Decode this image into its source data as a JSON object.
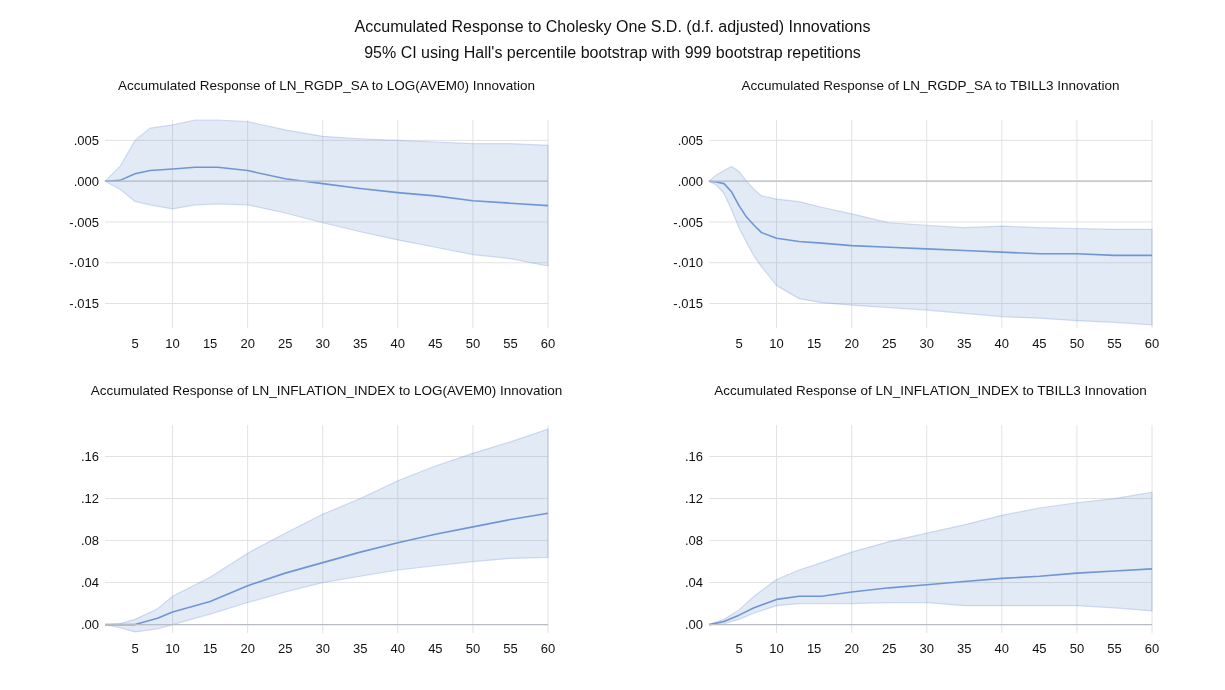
{
  "chart_data": [
    {
      "type": "other",
      "title": "Accumulated Response to Cholesky One S.D. (d.f. adjusted) Innovations",
      "subtitle": "95% CI using Hall's percentile bootstrap with 999 bootstrap repetitions"
    },
    {
      "type": "line",
      "title": "Accumulated Response of LN_RGDP_SA to LOG(AVEM0) Innovation",
      "x": [
        1,
        3,
        5,
        7,
        10,
        13,
        16,
        20,
        25,
        30,
        35,
        40,
        45,
        50,
        55,
        60
      ],
      "xlim": [
        1,
        60
      ],
      "xticks": [
        5,
        10,
        15,
        20,
        25,
        30,
        35,
        40,
        45,
        50,
        55,
        60
      ],
      "ylim": [
        -0.018,
        0.0075
      ],
      "yticks": [
        {
          "value": 0.005,
          "label": ".005"
        },
        {
          "value": 0,
          "label": ".000"
        },
        {
          "value": -0.005,
          "label": "-.005"
        },
        {
          "value": -0.01,
          "label": "-.010"
        },
        {
          "value": -0.015,
          "label": "-.015"
        }
      ],
      "grid": true,
      "series": [
        {
          "color": "#6f96d4",
          "values": [
            0,
            0.0001,
            0.0009,
            0.0013,
            0.0015,
            0.0017,
            0.0017,
            0.0013,
            0.0003,
            -0.0003,
            -0.0009,
            -0.0014,
            -0.0018,
            -0.0024,
            -0.0027,
            -0.003
          ],
          "upper": [
            0,
            0.0018,
            0.005,
            0.0065,
            0.0069,
            0.0075,
            0.0075,
            0.0073,
            0.0063,
            0.0055,
            0.0052,
            0.005,
            0.0048,
            0.0046,
            0.0046,
            0.0044
          ],
          "lower": [
            0,
            -0.001,
            -0.0025,
            -0.0029,
            -0.0034,
            -0.0029,
            -0.0028,
            -0.0029,
            -0.0039,
            -0.0051,
            -0.0062,
            -0.0072,
            -0.0081,
            -0.009,
            -0.0095,
            -0.0104
          ]
        }
      ]
    },
    {
      "type": "line",
      "title": "Accumulated Response of LN_RGDP_SA to TBILL3 Innovation",
      "x": [
        1,
        2,
        3,
        4,
        5,
        6,
        7,
        8,
        10,
        13,
        16,
        20,
        25,
        30,
        35,
        40,
        45,
        50,
        55,
        60
      ],
      "xlim": [
        1,
        60
      ],
      "xticks": [
        5,
        10,
        15,
        20,
        25,
        30,
        35,
        40,
        45,
        50,
        55,
        60
      ],
      "ylim": [
        -0.018,
        0.0075
      ],
      "yticks": [
        {
          "value": 0.005,
          "label": ".005"
        },
        {
          "value": 0,
          "label": ".000"
        },
        {
          "value": -0.005,
          "label": "-.005"
        },
        {
          "value": -0.01,
          "label": "-.010"
        },
        {
          "value": -0.015,
          "label": "-.015"
        }
      ],
      "grid": true,
      "series": [
        {
          "color": "#6f96d4",
          "values": [
            0,
            -0.0001,
            -0.0003,
            -0.0013,
            -0.003,
            -0.0044,
            -0.0054,
            -0.0063,
            -0.007,
            -0.0074,
            -0.0076,
            -0.0079,
            -0.0081,
            -0.0083,
            -0.0085,
            -0.0087,
            -0.0089,
            -0.0089,
            -0.0091,
            -0.0091
          ],
          "upper": [
            0,
            0.0008,
            0.0013,
            0.0018,
            0.0012,
            0,
            -0.001,
            -0.0018,
            -0.0022,
            -0.0025,
            -0.0032,
            -0.004,
            -0.0051,
            -0.0054,
            -0.0057,
            -0.0055,
            -0.0057,
            -0.0058,
            -0.0059,
            -0.0059
          ],
          "lower": [
            0,
            -0.0005,
            -0.0015,
            -0.0035,
            -0.0057,
            -0.0075,
            -0.0092,
            -0.0105,
            -0.0128,
            -0.0144,
            -0.0149,
            -0.0152,
            -0.0155,
            -0.0158,
            -0.0162,
            -0.0166,
            -0.0168,
            -0.0171,
            -0.0173,
            -0.0176
          ]
        }
      ]
    },
    {
      "type": "line",
      "title": "Accumulated Response of LN_INFLATION_INDEX to LOG(AVEM0) Innovation",
      "x": [
        1,
        3,
        5,
        8,
        10,
        15,
        20,
        25,
        30,
        35,
        40,
        45,
        50,
        55,
        60
      ],
      "xlim": [
        1,
        60
      ],
      "xticks": [
        5,
        10,
        15,
        20,
        25,
        30,
        35,
        40,
        45,
        50,
        55,
        60
      ],
      "ylim": [
        -0.008,
        0.19
      ],
      "yticks": [
        {
          "value": 0,
          "label": ".00"
        },
        {
          "value": 0.04,
          "label": ".04"
        },
        {
          "value": 0.08,
          "label": ".08"
        },
        {
          "value": 0.12,
          "label": ".12"
        },
        {
          "value": 0.16,
          "label": ".16"
        }
      ],
      "grid": true,
      "series": [
        {
          "color": "#6f96d4",
          "values": [
            0,
            0,
            0,
            0.006,
            0.012,
            0.022,
            0.037,
            0.049,
            0.059,
            0.069,
            0.078,
            0.086,
            0.093,
            0.1,
            0.106
          ],
          "upper": [
            0,
            0.001,
            0.005,
            0.015,
            0.027,
            0.045,
            0.068,
            0.087,
            0.105,
            0.12,
            0.137,
            0.151,
            0.163,
            0.174,
            0.186
          ],
          "lower": [
            0,
            -0.003,
            -0.007,
            -0.004,
            0,
            0.01,
            0.021,
            0.031,
            0.04,
            0.046,
            0.052,
            0.056,
            0.06,
            0.063,
            0.064
          ]
        }
      ]
    },
    {
      "type": "line",
      "title": "Accumulated Response of LN_INFLATION_INDEX to TBILL3 Innovation",
      "x": [
        1,
        3,
        5,
        7,
        10,
        13,
        16,
        20,
        25,
        30,
        35,
        40,
        45,
        50,
        55,
        60
      ],
      "xlim": [
        1,
        60
      ],
      "xticks": [
        5,
        10,
        15,
        20,
        25,
        30,
        35,
        40,
        45,
        50,
        55,
        60
      ],
      "ylim": [
        -0.008,
        0.19
      ],
      "yticks": [
        {
          "value": 0,
          "label": ".00"
        },
        {
          "value": 0.04,
          "label": ".04"
        },
        {
          "value": 0.08,
          "label": ".08"
        },
        {
          "value": 0.12,
          "label": ".12"
        },
        {
          "value": 0.16,
          "label": ".16"
        }
      ],
      "grid": true,
      "series": [
        {
          "color": "#6f96d4",
          "values": [
            0,
            0.003,
            0.009,
            0.016,
            0.024,
            0.027,
            0.027,
            0.031,
            0.035,
            0.038,
            0.041,
            0.044,
            0.046,
            0.049,
            0.051,
            0.053
          ],
          "upper": [
            0,
            0.005,
            0.014,
            0.027,
            0.043,
            0.052,
            0.059,
            0.069,
            0.079,
            0.087,
            0.095,
            0.104,
            0.111,
            0.116,
            0.12,
            0.126
          ],
          "lower": [
            0,
            0.001,
            0.005,
            0.011,
            0.018,
            0.02,
            0.02,
            0.02,
            0.021,
            0.021,
            0.018,
            0.018,
            0.018,
            0.018,
            0.016,
            0.013
          ]
        }
      ]
    }
  ]
}
